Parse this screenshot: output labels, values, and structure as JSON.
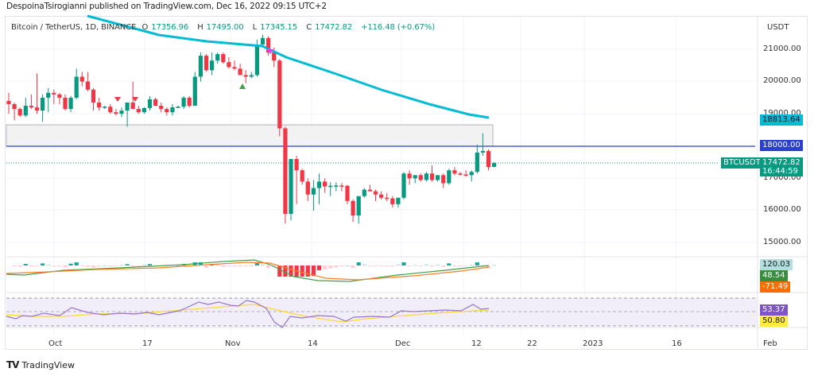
{
  "header": {
    "publish_line": "DespoinaTsirogianni published on TradingView.com, Dec 16, 2022 09:15 UTC+2"
  },
  "legend": {
    "symbol": "Bitcoin / TetherUS, 1D, BINANCE",
    "open_label": "O",
    "open": "17356.96",
    "high_label": "H",
    "high": "17495.00",
    "low_label": "L",
    "low": "17345.15",
    "close_label": "C",
    "close": "17472.82",
    "change": "+116.48 (+0.67%)"
  },
  "price_axis": {
    "currency": "USDT",
    "ticks": [
      "21000.00",
      "20000.00",
      "19000.00",
      "17000.00",
      "16000.00",
      "15000.00"
    ],
    "ma_tag": "18813.64",
    "level_tag": "18000.00",
    "symbol_tag": "BTCUSDT",
    "last_price_tag": "17472.82",
    "countdown": "16:44:59"
  },
  "macd_axis": {
    "histogram": "120.03",
    "macd": "48.54",
    "signal": "-71.49"
  },
  "rsi_axis": {
    "rsi": "53.37",
    "rsi_ma": "50.80"
  },
  "time_axis": [
    "Oct",
    "17",
    "Nov",
    "14",
    "Dec",
    "12",
    "22",
    "2023",
    "16",
    "Feb"
  ],
  "footer": {
    "brand": "TradingView",
    "logo": "TV"
  },
  "colors": {
    "up": "#089981",
    "down": "#f23645",
    "ma": "#00bcd4",
    "level": "#2a3fcf",
    "macd": "#43a047",
    "signal": "#ff7f27",
    "rsi": "#9575cd",
    "rsi_ma": "#fdd835"
  },
  "chart_data": {
    "type": "candlestick",
    "title": "Bitcoin / TetherUS, 1D, BINANCE",
    "ylabel": "USDT",
    "ylim": [
      14500,
      21800
    ],
    "horizontal_level": 18000,
    "resistance_zone": [
      18000,
      18650
    ],
    "ma_last": 18813.64,
    "last_close": 17472.82,
    "x_ticks": [
      "Oct",
      "17",
      "Nov",
      "14",
      "Dec",
      "12",
      "22",
      "2023",
      "16",
      "Feb"
    ],
    "candles": [
      [
        19400,
        19650,
        19000,
        19300
      ],
      [
        19300,
        19350,
        18800,
        19150
      ],
      [
        19150,
        19200,
        18900,
        18950
      ],
      [
        18950,
        19500,
        18900,
        19250
      ],
      [
        19250,
        19600,
        19150,
        19200
      ],
      [
        19200,
        20250,
        19000,
        19100
      ],
      [
        19100,
        19600,
        18750,
        19500
      ],
      [
        19500,
        19800,
        19050,
        19650
      ],
      [
        19650,
        19750,
        19300,
        19600
      ],
      [
        19600,
        19650,
        19300,
        19500
      ],
      [
        19500,
        19600,
        19100,
        19150
      ],
      [
        19150,
        19550,
        19050,
        19500
      ],
      [
        19500,
        20400,
        19450,
        20150
      ],
      [
        20150,
        20300,
        19850,
        20000
      ],
      [
        20000,
        20300,
        19700,
        19750
      ],
      [
        19750,
        19800,
        19100,
        19350
      ],
      [
        19350,
        19500,
        19100,
        19200
      ],
      [
        19200,
        19250,
        19150,
        19220
      ],
      [
        19220,
        19300,
        19000,
        19050
      ],
      [
        19050,
        19150,
        18950,
        19000
      ],
      [
        19000,
        19200,
        18900,
        19100
      ],
      [
        19100,
        19350,
        18600,
        19350
      ],
      [
        19350,
        20000,
        19250,
        19150
      ],
      [
        19150,
        19250,
        19000,
        19050
      ],
      [
        19050,
        19200,
        19000,
        19180
      ],
      [
        19180,
        19550,
        19100,
        19450
      ],
      [
        19450,
        19500,
        19300,
        19250
      ],
      [
        19250,
        19350,
        19050,
        19150
      ],
      [
        19150,
        19200,
        18950,
        19050
      ],
      [
        19050,
        19300,
        18950,
        19200
      ],
      [
        19200,
        19250,
        19170,
        19220
      ],
      [
        19220,
        19550,
        19150,
        19500
      ],
      [
        19500,
        19550,
        19200,
        19250
      ],
      [
        19250,
        20300,
        19250,
        20150
      ],
      [
        20150,
        20900,
        20000,
        20800
      ],
      [
        20800,
        20850,
        20300,
        20350
      ],
      [
        20350,
        20900,
        20200,
        20650
      ],
      [
        20650,
        20900,
        20550,
        20850
      ],
      [
        20850,
        20900,
        20550,
        20600
      ],
      [
        20600,
        20750,
        20400,
        20450
      ],
      [
        20450,
        20650,
        20350,
        20400
      ],
      [
        20400,
        20550,
        20200,
        20200
      ],
      [
        20200,
        20350,
        19950,
        20150
      ],
      [
        20150,
        20300,
        20100,
        20200
      ],
      [
        20200,
        21300,
        20150,
        21150
      ],
      [
        21150,
        21450,
        21100,
        21350
      ],
      [
        21350,
        21400,
        20800,
        20900
      ],
      [
        20900,
        21050,
        20450,
        20650
      ],
      [
        20650,
        20700,
        18300,
        18550
      ],
      [
        18550,
        18600,
        15600,
        15900
      ],
      [
        15900,
        17550,
        15700,
        17600
      ],
      [
        17600,
        17700,
        16200,
        17250
      ],
      [
        17250,
        17300,
        16800,
        16900
      ],
      [
        16900,
        17000,
        16300,
        16500
      ],
      [
        16500,
        16950,
        16000,
        16700
      ],
      [
        16700,
        17150,
        16200,
        16900
      ],
      [
        16900,
        17000,
        16550,
        16750
      ],
      [
        16750,
        16880,
        16450,
        16770
      ],
      [
        16770,
        16880,
        16600,
        16780
      ],
      [
        16780,
        16860,
        16600,
        16770
      ],
      [
        16770,
        16800,
        16200,
        16300
      ],
      [
        16300,
        16350,
        15650,
        15850
      ],
      [
        15850,
        16350,
        15600,
        16450
      ],
      [
        16450,
        16700,
        16400,
        16650
      ],
      [
        16650,
        16800,
        16600,
        16600
      ],
      [
        16600,
        16650,
        16300,
        16500
      ],
      [
        16500,
        16600,
        16350,
        16400
      ],
      [
        16400,
        16550,
        16300,
        16380
      ],
      [
        16380,
        16450,
        16100,
        16200
      ],
      [
        16200,
        16400,
        16100,
        16400
      ],
      [
        16400,
        17200,
        16350,
        17150
      ],
      [
        17150,
        17250,
        16800,
        17000
      ],
      [
        17000,
        17100,
        16850,
        17100
      ],
      [
        17100,
        17150,
        16900,
        16950
      ],
      [
        16950,
        17200,
        16900,
        17150
      ],
      [
        17150,
        17400,
        16900,
        16950
      ],
      [
        16950,
        17100,
        16900,
        17100
      ],
      [
        17100,
        17150,
        16700,
        16850
      ],
      [
        16850,
        17300,
        16800,
        17250
      ],
      [
        17250,
        17350,
        17100,
        17150
      ],
      [
        17150,
        17200,
        17080,
        17120
      ],
      [
        17120,
        17250,
        17050,
        17100
      ],
      [
        17100,
        17250,
        16900,
        17200
      ],
      [
        17200,
        18050,
        17150,
        17800
      ],
      [
        17800,
        18400,
        17700,
        17850
      ],
      [
        17850,
        17900,
        17250,
        17350
      ],
      [
        17356.96,
        17495,
        17345.15,
        17472.82
      ]
    ]
  }
}
